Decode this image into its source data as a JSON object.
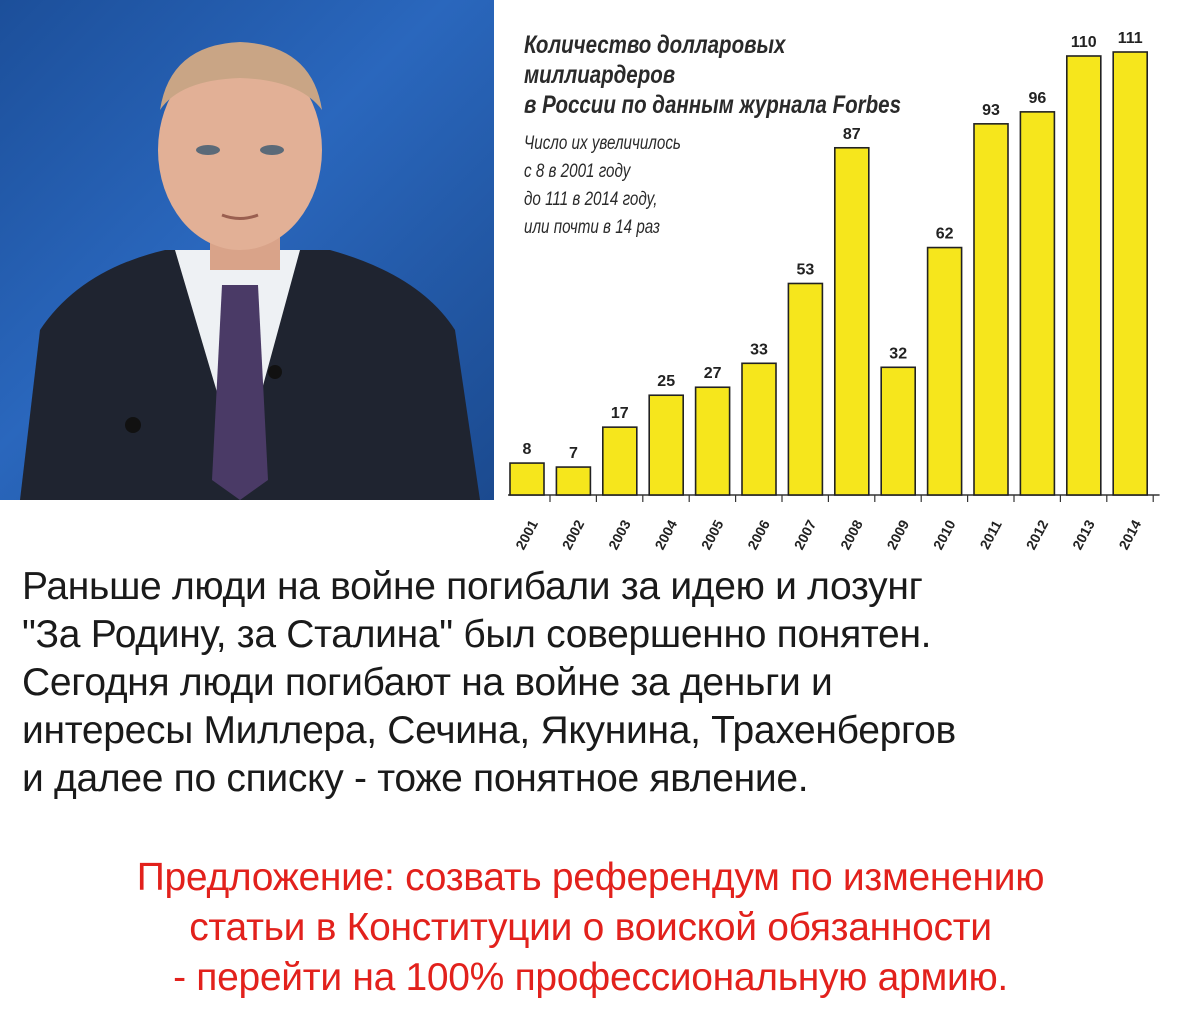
{
  "photo": {
    "description": "portrait",
    "bg_color": "#2a67bd"
  },
  "chart_data": {
    "type": "bar",
    "title_lines": [
      "Количество долларовых миллиардеров",
      "в России по данным журнала Forbes"
    ],
    "annotation_lines": [
      "Число их увеличилось",
      "с 8 в 2001 году",
      "до 111 в 2014 году,",
      "или почти в 14 раз"
    ],
    "categories": [
      "2001",
      "2002",
      "2003",
      "2004",
      "2005",
      "2006",
      "2007",
      "2008",
      "2009",
      "2010",
      "2011",
      "2012",
      "2013",
      "2014"
    ],
    "values": [
      8,
      7,
      17,
      25,
      27,
      33,
      53,
      87,
      32,
      62,
      93,
      96,
      110,
      111
    ],
    "ylim": [
      0,
      111
    ],
    "bar_color": "#f6e61c",
    "bar_edge_color": "#222222",
    "grid": false,
    "xlabel": "",
    "ylabel": ""
  },
  "text": {
    "body_lines": [
      "Раньше люди на войне погибали за идею и лозунг",
      "\"За Родину, за Сталина\" был совершенно понятен.",
      "Сегодня люди погибают на войне за деньги и",
      "интересы Миллера, Сечина, Якунина, Трахенбергов",
      "и далее по списку - тоже понятное явление."
    ],
    "proposal_lines": [
      "Предложение: созвать референдум по изменению",
      "статьи в Конституции о воиской обязанности",
      "- перейти на 100% профессиональную армию."
    ],
    "body_color": "#1a1a1a",
    "proposal_color": "#e2211c"
  }
}
